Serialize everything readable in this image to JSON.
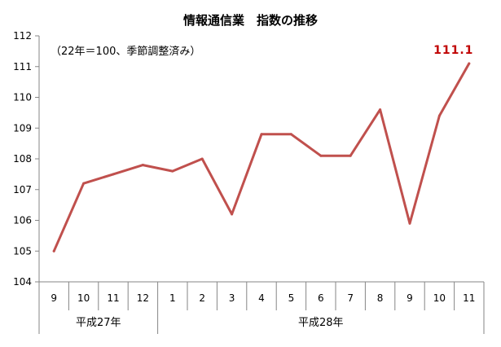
{
  "chart_data": {
    "type": "line",
    "title": "情報通信業　指数の推移",
    "subtitle": "（22年＝100、季節調整済み）",
    "categories": [
      "9",
      "10",
      "11",
      "12",
      "1",
      "2",
      "3",
      "4",
      "5",
      "6",
      "7",
      "8",
      "9",
      "10",
      "11"
    ],
    "groups": [
      {
        "label": "平成27年",
        "count": 4
      },
      {
        "label": "平成28年",
        "count": 11
      }
    ],
    "series": [
      {
        "values": [
          105.0,
          107.2,
          107.5,
          107.8,
          107.6,
          108.0,
          106.2,
          108.8,
          108.8,
          108.1,
          108.1,
          109.6,
          105.9,
          109.4,
          111.1
        ]
      }
    ],
    "ylim": [
      104,
      112
    ],
    "yticks": [
      104,
      105,
      106,
      107,
      108,
      109,
      110,
      111,
      112
    ],
    "last_value_label": "111.1",
    "grid": false,
    "colors": {
      "line": "#C0504D",
      "last_label": "#C00000",
      "axis": "#868686"
    }
  }
}
